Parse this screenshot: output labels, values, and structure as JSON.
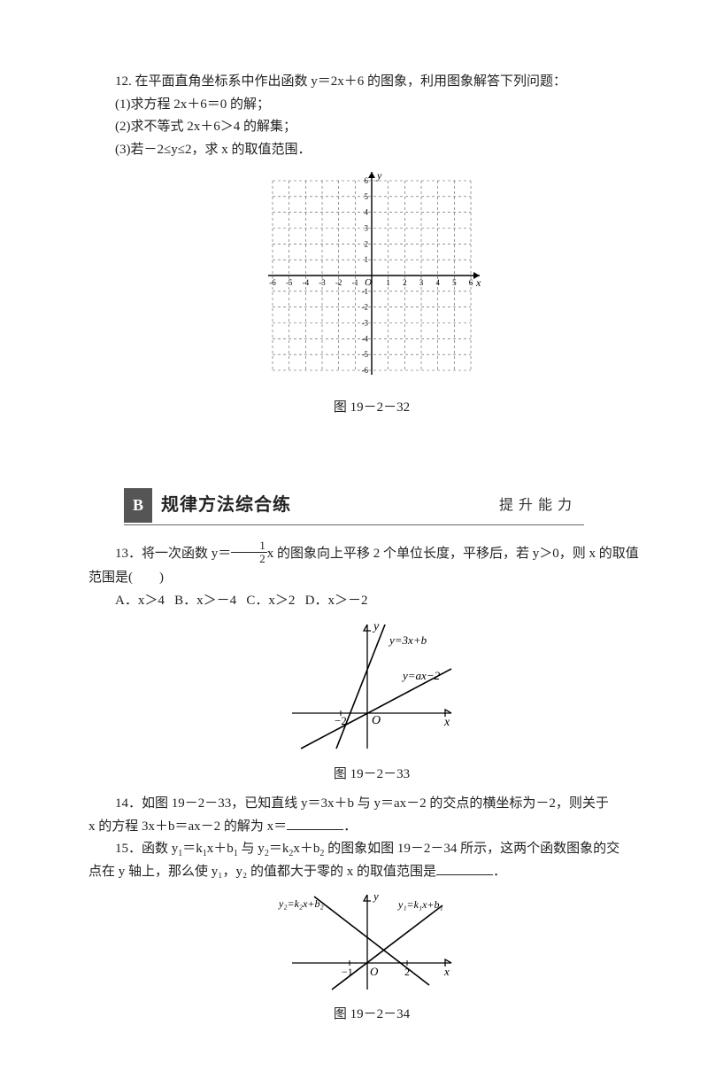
{
  "q12": {
    "stem": "12. 在平面直角坐标系中作出函数 y＝2x＋6 的图象，利用图象解答下列问题：",
    "p1": "(1)求方程 2x＋6＝0 的解；",
    "p2": "(2)求不等式 2x＋6＞4 的解集；",
    "p3": "(3)若－2≤y≤2，求 x 的取值范围．",
    "caption": "图 19－2－32",
    "grid": {
      "xmin": -6,
      "xmax": 6,
      "ymin": -6,
      "ymax": 6,
      "step": 1,
      "axis_color": "#000000",
      "grid_color": "#555555",
      "x_label": "x",
      "y_label": "y",
      "origin_label": "O",
      "tick_fontsize": 9
    }
  },
  "sectionB": {
    "badge": "B",
    "title": "规律方法综合练",
    "subtitle": "提升能力"
  },
  "q13": {
    "preA": "13．将一次函数 y＝",
    "frac_num": "1",
    "frac_den": "2",
    "preB": "x 的图象向上平移 2 个单位长度，平移后，若 y＞0，则 x 的取值",
    "line2": "范围是(　　)",
    "optA": "A．x＞4",
    "optB": "B．x＞－4",
    "optC": "C．x＞2",
    "optD": "D．x＞－2"
  },
  "fig33": {
    "caption": "图 19－2－33",
    "labels": {
      "x": "x",
      "y": "y",
      "O": "O",
      "xint": "−2",
      "l1": "y=3x+b",
      "l2": "y=ax−2"
    },
    "colors": {
      "axis": "#000000",
      "line": "#000000"
    }
  },
  "q14": {
    "line1": "14．如图 19－2－33，已知直线 y＝3x＋b 与 y＝ax－2 的交点的横坐标为－2，则关于",
    "line2pre": "x 的方程 3x＋b＝ax－2 的解为 x＝",
    "line2post": "．"
  },
  "q15": {
    "line1a": "15．函数 y",
    "sub11": "1",
    "eq1": "＝k",
    "sub12": "1",
    "mid1": "x＋b",
    "sub13": "1",
    "and": " 与 y",
    "sub21": "2",
    "eq2": "＝k",
    "sub22": "2",
    "mid2": "x＋b",
    "sub23": "2",
    "line1b": " 的图象如图 19－2－34 所示，这两个函数图象的交",
    "line2pre": "点在 y 轴上，那么使 y₁，y₂ 的值都大于零的 x 的取值范围是",
    "line2post": "．"
  },
  "fig34": {
    "caption": "图 19－2－34",
    "labels": {
      "x": "x",
      "y": "y",
      "O": "O",
      "xt1": "−1",
      "xt2": "2",
      "l1": "y₁=k₁x+b₁",
      "l2": "y₂=k₂x+b₂"
    },
    "colors": {
      "axis": "#000000",
      "line": "#000000"
    }
  }
}
